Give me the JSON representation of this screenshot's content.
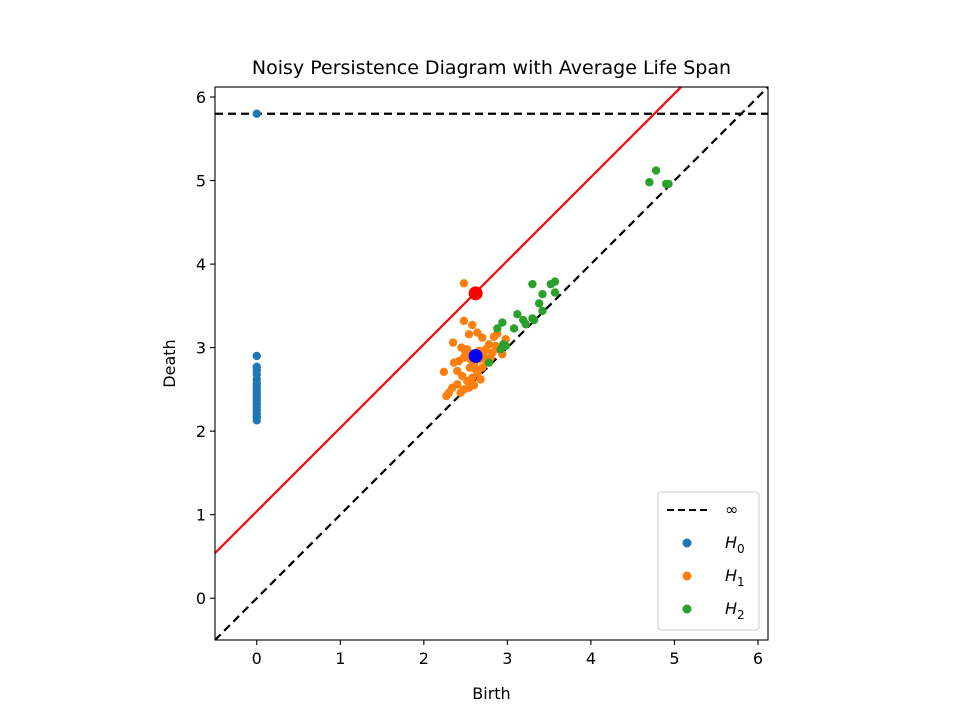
{
  "chart_data": {
    "type": "scatter",
    "title": "Noisy Persistence Diagram with Average Life Span",
    "xlabel": "Birth",
    "ylabel": "Death",
    "xlim": [
      -0.5,
      6.12
    ],
    "ylim": [
      -0.5,
      6.12
    ],
    "x_ticks": [
      0,
      1,
      2,
      3,
      4,
      5,
      6
    ],
    "y_ticks": [
      0,
      1,
      2,
      3,
      4,
      5,
      6
    ],
    "infinity_level": 5.8,
    "legend_position": "lower-right",
    "legend": {
      "infinity_label": "∞",
      "h0_base": "H",
      "h0_sub": "0",
      "h1_base": "H",
      "h1_sub": "1",
      "h2_base": "H",
      "h2_sub": "2"
    },
    "colors": {
      "H0": "#1f77b4",
      "H1": "#ff7f0e",
      "H2": "#2ca02c",
      "average_line": "#ff0000",
      "average_point_high": "#ff0000",
      "average_point_low": "#0000ff",
      "reference_lines": "#000000"
    },
    "average_life_span_line": {
      "slope": 1,
      "intercept": 1.04
    },
    "average_points": [
      {
        "x": 2.62,
        "y": 3.65,
        "color": "#ff0000"
      },
      {
        "x": 2.62,
        "y": 2.9,
        "color": "#0000ff"
      }
    ],
    "series": [
      {
        "name": "H_0",
        "color": "#1f77b4",
        "points": [
          [
            0,
            5.8
          ],
          [
            0,
            2.9
          ],
          [
            0,
            2.77
          ],
          [
            0,
            2.73
          ],
          [
            0,
            2.68
          ],
          [
            0,
            2.62
          ],
          [
            0,
            2.57
          ],
          [
            0,
            2.53
          ],
          [
            0,
            2.49
          ],
          [
            0,
            2.45
          ],
          [
            0,
            2.41
          ],
          [
            0,
            2.37
          ],
          [
            0,
            2.33
          ],
          [
            0,
            2.29
          ],
          [
            0,
            2.25
          ],
          [
            0,
            2.21
          ],
          [
            0,
            2.17
          ],
          [
            0,
            2.13
          ]
        ]
      },
      {
        "name": "H_1",
        "color": "#ff7f0e",
        "points": [
          [
            2.48,
            3.77
          ],
          [
            2.48,
            3.32
          ],
          [
            2.58,
            3.27
          ],
          [
            2.54,
            3.16
          ],
          [
            2.64,
            3.18
          ],
          [
            2.7,
            3.12
          ],
          [
            2.35,
            3.06
          ],
          [
            2.45,
            3.0
          ],
          [
            2.52,
            2.98
          ],
          [
            2.58,
            2.92
          ],
          [
            2.66,
            2.96
          ],
          [
            2.72,
            2.9
          ],
          [
            2.78,
            3.04
          ],
          [
            2.84,
            3.13
          ],
          [
            2.88,
            3.17
          ],
          [
            2.9,
            2.98
          ],
          [
            2.94,
            2.92
          ],
          [
            2.8,
            2.88
          ],
          [
            2.75,
            2.82
          ],
          [
            2.7,
            2.76
          ],
          [
            2.6,
            2.8
          ],
          [
            2.55,
            2.76
          ],
          [
            2.48,
            2.88
          ],
          [
            2.42,
            2.84
          ],
          [
            2.36,
            2.82
          ],
          [
            2.4,
            2.72
          ],
          [
            2.46,
            2.66
          ],
          [
            2.52,
            2.6
          ],
          [
            2.58,
            2.64
          ],
          [
            2.64,
            2.7
          ],
          [
            2.68,
            2.62
          ],
          [
            2.6,
            2.55
          ],
          [
            2.54,
            2.52
          ],
          [
            2.48,
            2.5
          ],
          [
            2.4,
            2.56
          ],
          [
            2.34,
            2.52
          ],
          [
            2.3,
            2.46
          ],
          [
            2.27,
            2.42
          ],
          [
            2.24,
            2.71
          ],
          [
            2.44,
            2.46
          ],
          [
            2.56,
            2.86
          ],
          [
            2.62,
            2.74
          ],
          [
            2.74,
            2.98
          ],
          [
            2.82,
            2.94
          ],
          [
            2.98,
            3.1
          ],
          [
            2.5,
            2.94
          ],
          [
            2.66,
            2.86
          ],
          [
            2.86,
            3.02
          ]
        ]
      },
      {
        "name": "H_2",
        "color": "#2ca02c",
        "points": [
          [
            4.7,
            4.98
          ],
          [
            4.78,
            5.12
          ],
          [
            4.9,
            4.96
          ],
          [
            4.93,
            4.96
          ],
          [
            3.3,
            3.76
          ],
          [
            3.42,
            3.64
          ],
          [
            3.52,
            3.76
          ],
          [
            3.57,
            3.79
          ],
          [
            3.57,
            3.66
          ],
          [
            3.38,
            3.53
          ],
          [
            3.42,
            3.44
          ],
          [
            3.12,
            3.4
          ],
          [
            3.19,
            3.33
          ],
          [
            3.22,
            3.28
          ],
          [
            3.3,
            3.35
          ],
          [
            3.32,
            3.33
          ],
          [
            3.08,
            3.23
          ],
          [
            2.94,
            3.3
          ],
          [
            2.88,
            3.23
          ],
          [
            2.95,
            3.04
          ],
          [
            2.98,
            3.02
          ],
          [
            2.92,
            2.98
          ],
          [
            2.78,
            2.82
          ]
        ]
      }
    ]
  }
}
